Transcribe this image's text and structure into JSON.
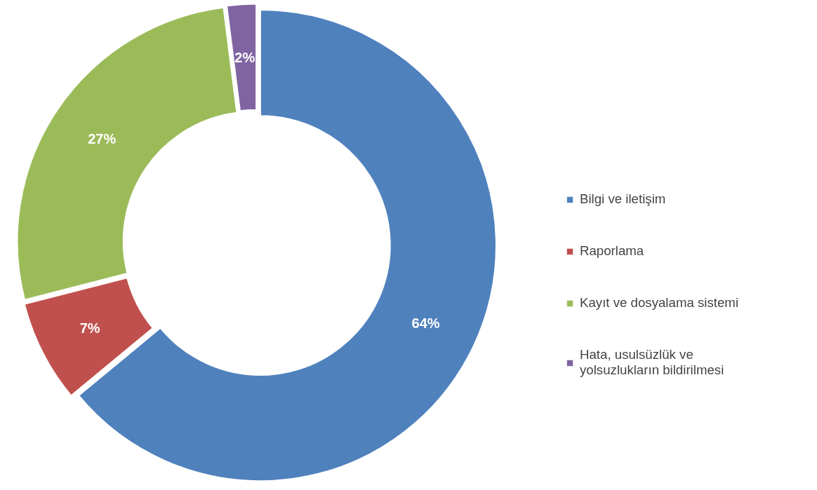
{
  "chart_data": {
    "type": "donut",
    "categories": [
      "Bilgi ve iletişim",
      "Raporlama",
      "Kayıt ve dosyalama sistemi",
      "Hata, usulsüzlük ve yolsuzlukların bildirilmesi"
    ],
    "values": [
      64,
      7,
      27,
      2
    ],
    "colors": [
      "#4f81bd",
      "#c0504d",
      "#9bbb59",
      "#8064a2"
    ],
    "value_labels": [
      "64%",
      "7%",
      "27%",
      "2%"
    ],
    "legend": "right"
  }
}
